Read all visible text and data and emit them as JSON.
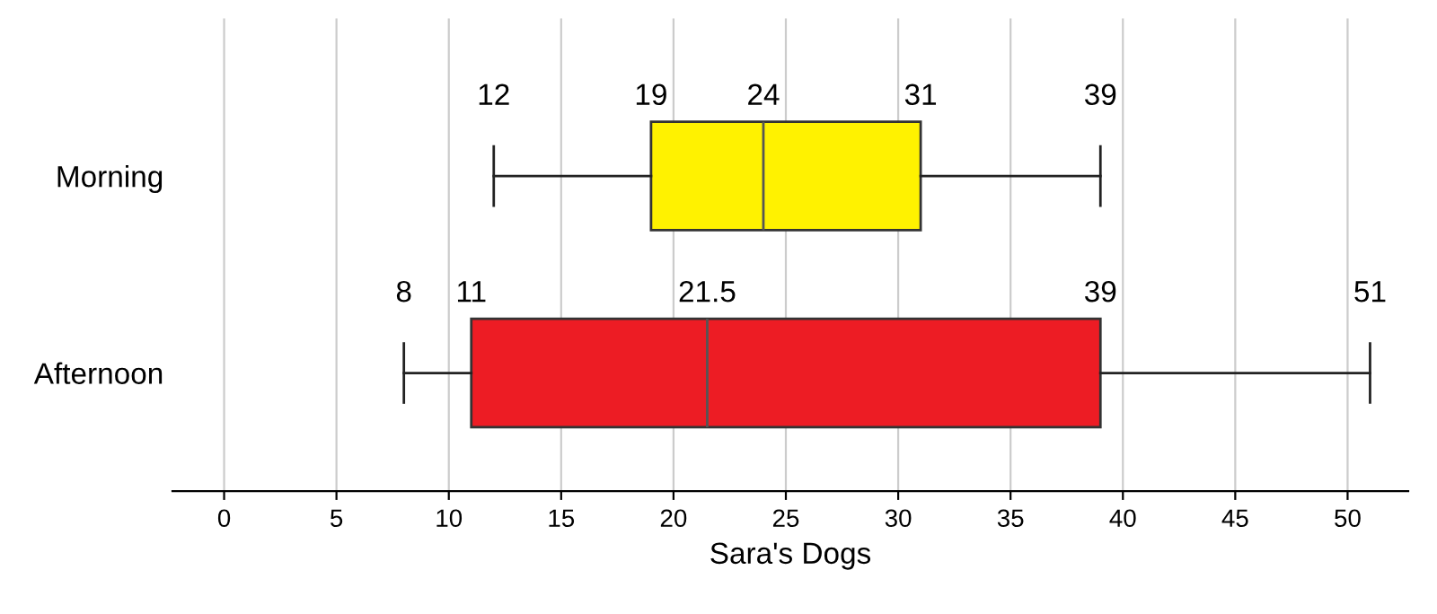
{
  "chart_data": {
    "type": "box",
    "orientation": "horizontal",
    "xlabel": "Sara's Dogs",
    "categories": [
      "Morning",
      "Afternoon"
    ],
    "boxes": [
      {
        "low": 12,
        "q1": 19,
        "median": 24,
        "q3": 31,
        "high": 39
      },
      {
        "low": 8,
        "q1": 11,
        "median": 21.5,
        "q3": 39,
        "high": 51
      }
    ],
    "colors": [
      "#fff200",
      "#ed1c24"
    ],
    "xlim": [
      -2.3,
      52.7
    ],
    "xticks": [
      0,
      5,
      10,
      15,
      20,
      25,
      30,
      35,
      40,
      45,
      50
    ],
    "grid": "x",
    "annotations": [
      {
        "text": "12",
        "x": 12,
        "y": "Morning"
      },
      {
        "text": "19",
        "x": 19,
        "y": "Morning"
      },
      {
        "text": "24",
        "x": 24,
        "y": "Morning"
      },
      {
        "text": "31",
        "x": 31,
        "y": "Morning"
      },
      {
        "text": "39",
        "x": 39,
        "y": "Morning"
      },
      {
        "text": "8",
        "x": 8,
        "y": "Afternoon"
      },
      {
        "text": "11",
        "x": 11,
        "y": "Afternoon"
      },
      {
        "text": "21.5",
        "x": 21.5,
        "y": "Afternoon"
      },
      {
        "text": "39",
        "x": 39,
        "y": "Afternoon"
      },
      {
        "text": "51",
        "x": 51,
        "y": "Afternoon"
      }
    ]
  }
}
